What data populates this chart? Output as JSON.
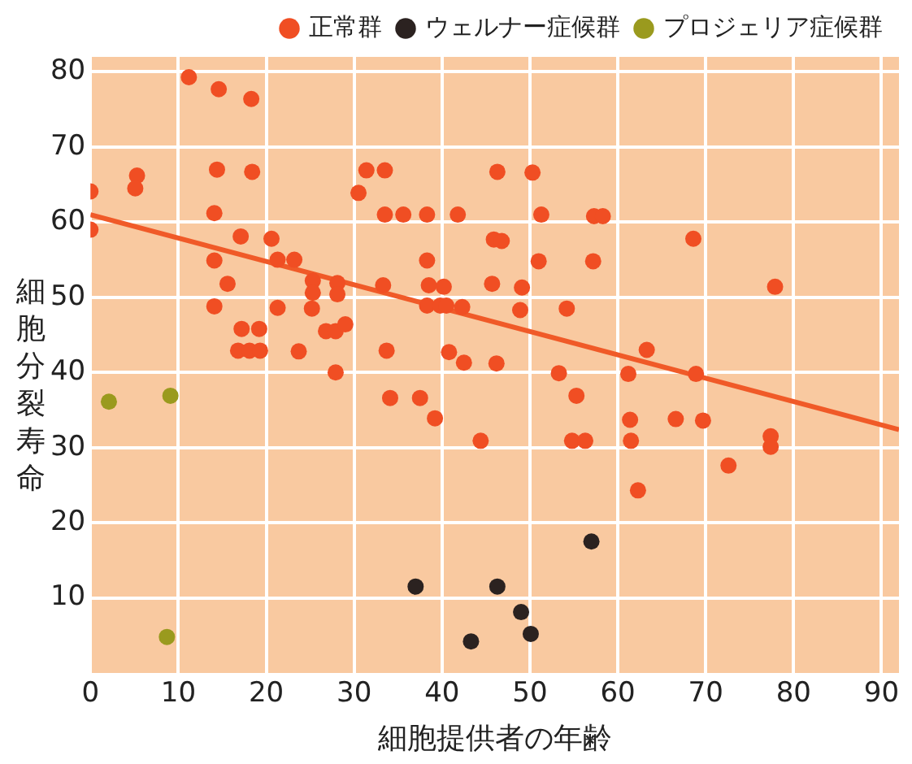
{
  "chart_data": {
    "type": "scatter",
    "xlabel": "細胞提供者の年齢",
    "ylabel": "細胞分裂寿命",
    "xlim": [
      0,
      92
    ],
    "ylim": [
      0,
      82
    ],
    "xticks": [
      0,
      10,
      20,
      30,
      40,
      50,
      60,
      70,
      80,
      90
    ],
    "yticks": [
      10,
      20,
      30,
      40,
      50,
      60,
      70,
      80
    ],
    "grid": true,
    "legend": "top right",
    "marker": "circle",
    "series": [
      {
        "name": "正常群",
        "color": "#f04e23",
        "x": [
          0,
          0,
          5.3,
          5.1,
          11.2,
          14.6,
          18.3,
          14.4,
          18.4,
          14.1,
          17.1,
          20.6,
          14.1,
          21.3,
          23.2,
          15.6,
          25.3,
          25.3,
          28.1,
          28.1,
          14.1,
          21.3,
          25.2,
          17.2,
          19.2,
          26.8,
          27.9,
          29,
          16.8,
          18.1,
          19.3,
          23.7,
          27.9,
          31.4,
          33.5,
          30.5,
          33.5,
          35.6,
          38.3,
          41.8,
          46.3,
          50.3,
          51.3,
          57.3,
          58.3,
          45.9,
          46.8,
          38.3,
          51,
          57.2,
          33.3,
          38.5,
          40.2,
          45.7,
          49.1,
          38.3,
          39.8,
          40.5,
          42.3,
          48.9,
          54.2,
          33.7,
          40.8,
          42.5,
          46.2,
          53.3,
          34.1,
          37.5,
          55.3,
          68.6,
          77.9,
          63.3,
          61.2,
          68.9,
          39.2,
          44.4,
          61.4,
          66.6,
          69.7,
          54.8,
          56.3,
          61.5,
          77.4,
          77.4,
          72.6,
          62.3
        ],
        "values": [
          64.1,
          59,
          66.2,
          64.5,
          79.3,
          77.7,
          76.4,
          67,
          66.7,
          61.2,
          58.1,
          57.8,
          54.9,
          55,
          55,
          51.8,
          52.2,
          50.6,
          51.9,
          50.4,
          48.8,
          48.6,
          48.5,
          45.8,
          45.8,
          45.5,
          45.5,
          46.4,
          42.9,
          42.9,
          42.9,
          42.8,
          40,
          66.9,
          66.9,
          63.9,
          61,
          61,
          61,
          61,
          66.7,
          66.6,
          61,
          60.8,
          60.8,
          57.7,
          57.5,
          54.9,
          54.8,
          54.8,
          51.6,
          51.6,
          51.4,
          51.8,
          51.3,
          48.9,
          48.9,
          48.9,
          48.7,
          48.3,
          48.5,
          42.9,
          42.7,
          41.3,
          41.2,
          39.9,
          36.6,
          36.6,
          36.9,
          57.8,
          51.4,
          43,
          39.8,
          39.8,
          33.9,
          30.9,
          33.7,
          33.8,
          33.6,
          30.9,
          30.9,
          30.9,
          31.5,
          30.1,
          27.6,
          24.3
        ]
      },
      {
        "name": "ウェルナー症候群",
        "color": "#2b2220",
        "x": [
          37,
          43.3,
          57,
          46.3,
          49,
          50.1
        ],
        "values": [
          11.5,
          4.2,
          17.5,
          11.5,
          8.1,
          5.2
        ]
      },
      {
        "name": "プロジェリア症候群",
        "color": "#9a9a1e",
        "x": [
          2.1,
          9.1,
          8.7
        ],
        "values": [
          36.1,
          36.9,
          4.8
        ]
      },
      {
        "type": "line",
        "marker": "none",
        "color": "#f05a28",
        "x": [
          0,
          92
        ],
        "values": [
          61,
          32.4
        ]
      }
    ]
  }
}
